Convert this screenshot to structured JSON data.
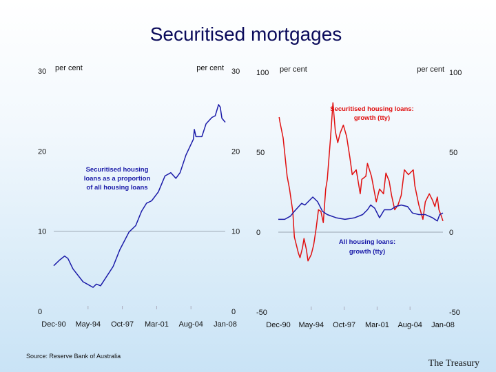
{
  "title": "Securitised mortgages",
  "source": "Source: Reserve Bank of Australia",
  "brand": "The Treasury",
  "colors": {
    "blue": "#1a1aa8",
    "red": "#e01010",
    "grid": "#9aa6b2",
    "title": "#0a0a5a"
  },
  "chart_data": [
    {
      "type": "line",
      "unit_left": "per cent",
      "unit_right": "per cent",
      "ylim": [
        0,
        30
      ],
      "yticks": [
        "0",
        "10",
        "20",
        "30"
      ],
      "xticks": [
        "Dec-90",
        "May-94",
        "Oct-97",
        "Mar-01",
        "Aug-04",
        "Jan-08"
      ],
      "grid": "horizontal line at 10",
      "annotation": "Securitised housing loans as a proportion of all housing loans",
      "series": [
        {
          "color": "blue",
          "points": [
            [
              "1990-12",
              5.7
            ],
            [
              "1991-07",
              6.4
            ],
            [
              "1992-01",
              6.9
            ],
            [
              "1992-05",
              6.6
            ],
            [
              "1992-11",
              5.3
            ],
            [
              "1993-11",
              3.7
            ],
            [
              "1994-11",
              3.0
            ],
            [
              "1995-03",
              3.4
            ],
            [
              "1995-08",
              3.2
            ],
            [
              "1996-11",
              5.6
            ],
            [
              "1997-07",
              7.7
            ],
            [
              "1998-06",
              9.9
            ],
            [
              "1999-02",
              10.7
            ],
            [
              "1999-09",
              12.5
            ],
            [
              "2000-03",
              13.5
            ],
            [
              "2000-09",
              13.8
            ],
            [
              "2001-05",
              14.9
            ],
            [
              "2002-01",
              16.9
            ],
            [
              "2002-08",
              17.3
            ],
            [
              "2003-02",
              16.6
            ],
            [
              "2003-07",
              17.3
            ],
            [
              "2004-02",
              19.5
            ],
            [
              "2004-11",
              21.5
            ],
            [
              "2004-12",
              22.7
            ],
            [
              "2005-02",
              21.8
            ],
            [
              "2005-09",
              21.8
            ],
            [
              "2006-02",
              23.4
            ],
            [
              "2006-09",
              24.2
            ],
            [
              "2007-01",
              24.4
            ],
            [
              "2007-05",
              25.8
            ],
            [
              "2007-07",
              25.5
            ],
            [
              "2007-09",
              24.1
            ],
            [
              "2008-01",
              23.6
            ]
          ]
        }
      ]
    },
    {
      "type": "line",
      "unit_left": "per cent",
      "unit_right": "per cent",
      "ylim": [
        -50,
        100
      ],
      "yticks": [
        "-50",
        "0",
        "50",
        "100"
      ],
      "xticks": [
        "Dec-90",
        "May-94",
        "Oct-97",
        "Mar-01",
        "Aug-04",
        "Jan-08"
      ],
      "grid": "horizontal line at 0",
      "series": [
        {
          "name": "Securitised housing loans: growth (tty)",
          "color": "red",
          "points": [
            [
              "1991-01",
              72
            ],
            [
              "1991-02",
              69
            ],
            [
              "1991-06",
              59
            ],
            [
              "1991-11",
              35
            ],
            [
              "1992-02",
              27
            ],
            [
              "1992-06",
              13
            ],
            [
              "1992-08",
              -3
            ],
            [
              "1993-01",
              -13
            ],
            [
              "1993-03",
              -16
            ],
            [
              "1993-06",
              -10
            ],
            [
              "1993-08",
              -4
            ],
            [
              "1993-11",
              -11
            ],
            [
              "1994-01",
              -18
            ],
            [
              "1994-05",
              -14
            ],
            [
              "1994-08",
              -8
            ],
            [
              "1994-11",
              2
            ],
            [
              "1995-02",
              14
            ],
            [
              "1995-05",
              13
            ],
            [
              "1995-08",
              6
            ],
            [
              "1995-11",
              27
            ],
            [
              "1996-01",
              33
            ],
            [
              "1996-05",
              59
            ],
            [
              "1996-08",
              81
            ],
            [
              "1996-11",
              63
            ],
            [
              "1997-02",
              56
            ],
            [
              "1997-05",
              62
            ],
            [
              "1997-09",
              67
            ],
            [
              "1998-01",
              60
            ],
            [
              "1998-05",
              47
            ],
            [
              "1998-08",
              36
            ],
            [
              "1999-01",
              39
            ],
            [
              "1999-06",
              24
            ],
            [
              "1999-08",
              33
            ],
            [
              "2000-01",
              35
            ],
            [
              "2000-03",
              43
            ],
            [
              "2000-08",
              35
            ],
            [
              "2000-11",
              27
            ],
            [
              "2001-02",
              19
            ],
            [
              "2001-06",
              27
            ],
            [
              "2001-11",
              24
            ],
            [
              "2002-02",
              37
            ],
            [
              "2002-06",
              32
            ],
            [
              "2002-09",
              23
            ],
            [
              "2003-01",
              14
            ],
            [
              "2003-05",
              17
            ],
            [
              "2003-09",
              23
            ],
            [
              "2004-01",
              39
            ],
            [
              "2004-06",
              36
            ],
            [
              "2004-12",
              39
            ],
            [
              "2005-02",
              29
            ],
            [
              "2005-07",
              17
            ],
            [
              "2005-12",
              8
            ],
            [
              "2006-03",
              19
            ],
            [
              "2006-08",
              24
            ],
            [
              "2006-12",
              20
            ],
            [
              "2007-03",
              16
            ],
            [
              "2007-06",
              22
            ],
            [
              "2007-08",
              14
            ],
            [
              "2007-11",
              10
            ],
            [
              "2008-01",
              7
            ]
          ]
        },
        {
          "name": "All housing loans: growth (tty)",
          "color": "blue",
          "points": [
            [
              "1990-12",
              8
            ],
            [
              "1991-08",
              8
            ],
            [
              "1992-03",
              10
            ],
            [
              "1992-08",
              13
            ],
            [
              "1993-05",
              18
            ],
            [
              "1993-09",
              17
            ],
            [
              "1994-07",
              22
            ],
            [
              "1995-01",
              19
            ],
            [
              "1995-07",
              13
            ],
            [
              "1996-01",
              11
            ],
            [
              "1996-12",
              9
            ],
            [
              "1997-11",
              8
            ],
            [
              "1998-11",
              9
            ],
            [
              "1999-09",
              11
            ],
            [
              "2000-03",
              14
            ],
            [
              "2000-07",
              17
            ],
            [
              "2000-12",
              15
            ],
            [
              "2001-06",
              9
            ],
            [
              "2001-12",
              14
            ],
            [
              "2002-08",
              14
            ],
            [
              "2003-02",
              16
            ],
            [
              "2003-09",
              17
            ],
            [
              "2004-05",
              16
            ],
            [
              "2004-11",
              12
            ],
            [
              "2005-07",
              11
            ],
            [
              "2006-03",
              11
            ],
            [
              "2006-12",
              9
            ],
            [
              "2007-06",
              7
            ],
            [
              "2007-09",
              11
            ],
            [
              "2008-01",
              12
            ]
          ]
        }
      ]
    }
  ]
}
